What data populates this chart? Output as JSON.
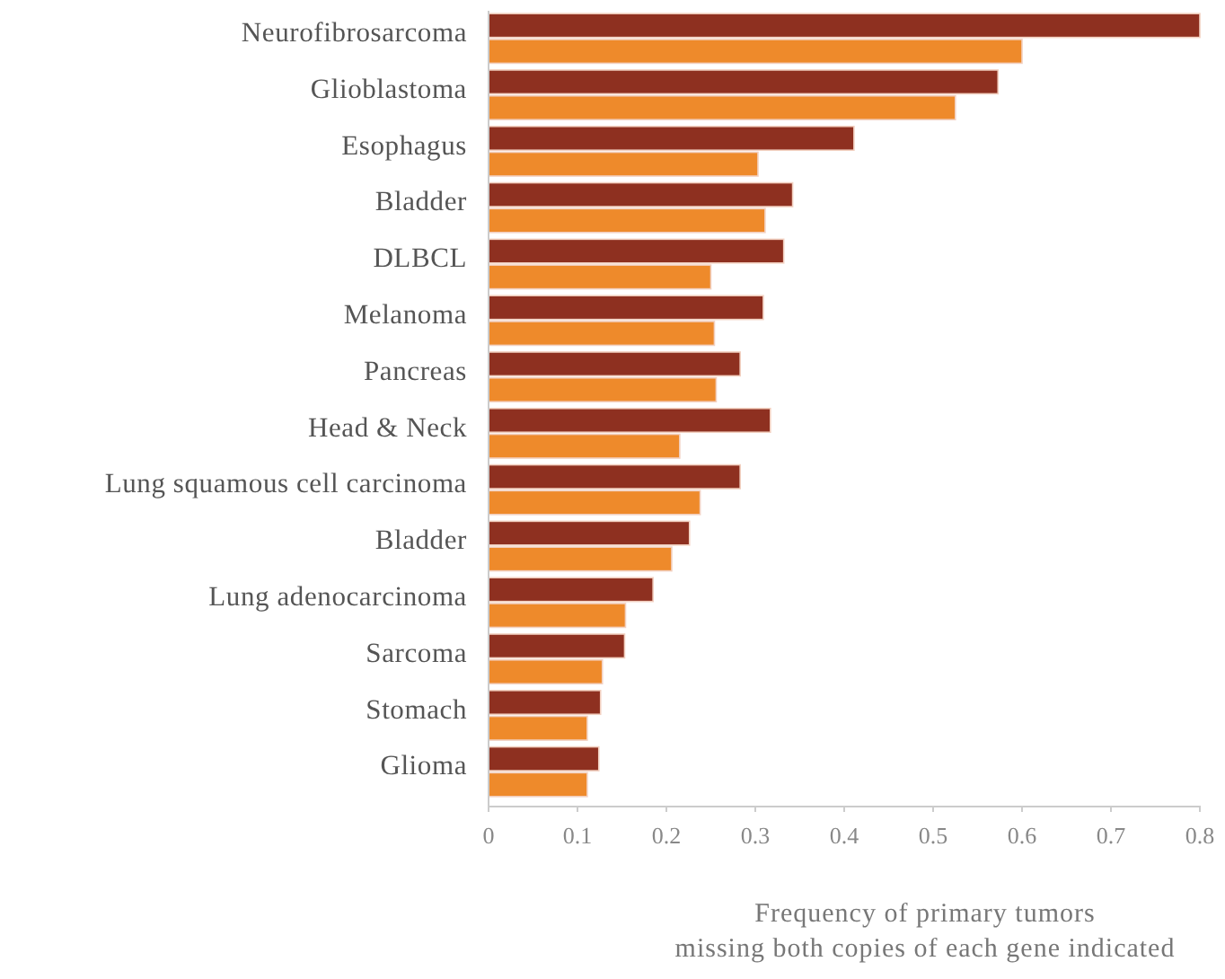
{
  "chart_data": {
    "type": "bar",
    "orientation": "horizontal",
    "categories": [
      "Neurofibrosarcoma",
      "Glioblastoma",
      "Esophagus",
      "Bladder",
      "DLBCL",
      "Melanoma",
      "Pancreas",
      "Head & Neck",
      "Lung squamous cell carcinoma",
      "Bladder",
      "Lung adenocarcinoma",
      "Sarcoma",
      "Stomach",
      "Glioma"
    ],
    "series": [
      {
        "color": "#8e3020",
        "values": [
          0.8,
          0.573,
          0.411,
          0.342,
          0.332,
          0.309,
          0.283,
          0.317,
          0.283,
          0.226,
          0.185,
          0.153,
          0.126,
          0.124
        ]
      },
      {
        "color": "#ee8a2b",
        "values": [
          0.6,
          0.525,
          0.303,
          0.311,
          0.25,
          0.254,
          0.256,
          0.215,
          0.238,
          0.206,
          0.154,
          0.128,
          0.111,
          0.111
        ]
      }
    ],
    "xlabel": "Frequency of primary tumors\nmissing both copies of each gene indicated",
    "xlim": [
      0,
      0.8
    ],
    "xticks": [
      0,
      0.1,
      0.2,
      0.3,
      0.4,
      0.5,
      0.6,
      0.7,
      0.8
    ],
    "grid": false
  }
}
